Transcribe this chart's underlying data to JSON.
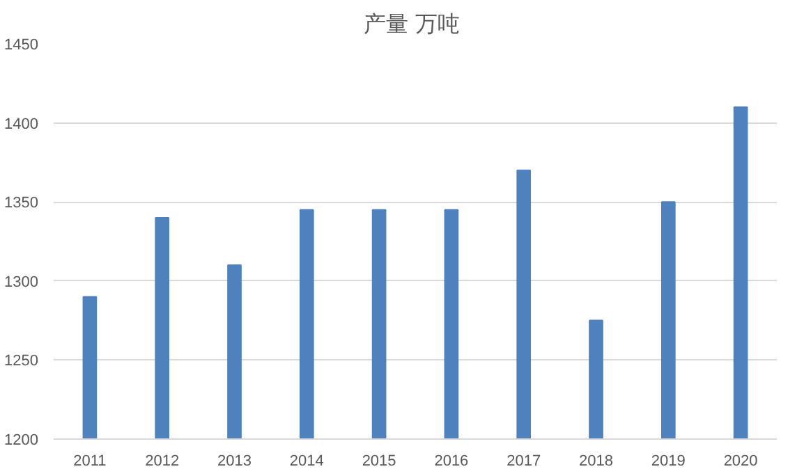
{
  "chart_data": {
    "type": "bar",
    "title": "产量  万吨",
    "categories": [
      "2011",
      "2012",
      "2013",
      "2014",
      "2015",
      "2016",
      "2017",
      "2018",
      "2019",
      "2020"
    ],
    "values": [
      1290,
      1340,
      1310,
      1345,
      1345,
      1345,
      1370,
      1275,
      1350,
      1410
    ],
    "color": "#4f81bd",
    "ylim": [
      1200,
      1450
    ],
    "yticks": [
      1200,
      1250,
      1300,
      1350,
      1400,
      1450
    ],
    "grid": "y"
  }
}
